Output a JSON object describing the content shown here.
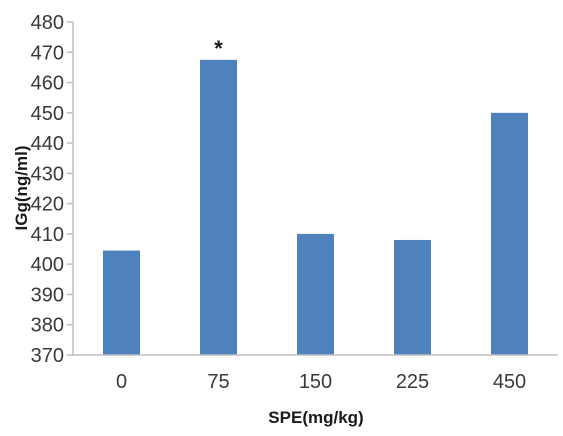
{
  "chart_data": {
    "type": "bar",
    "categories": [
      "0",
      "75",
      "150",
      "225",
      "450"
    ],
    "values": [
      404.5,
      467.5,
      410,
      408,
      450
    ],
    "xlabel": "SPE(mg/kg)",
    "ylabel": "IGg(ng/ml)",
    "ylim": [
      370,
      480
    ],
    "yticks": [
      "370",
      "380",
      "390",
      "400",
      "410",
      "420",
      "430",
      "440",
      "450",
      "460",
      "470",
      "480"
    ],
    "annotations": [
      {
        "category": "75",
        "text": "*"
      }
    ],
    "grid": false,
    "legend": "none",
    "colors": {
      "bar": "#4f81bd",
      "axis": "#bfbfbf",
      "text": "#3a3a3a"
    }
  }
}
